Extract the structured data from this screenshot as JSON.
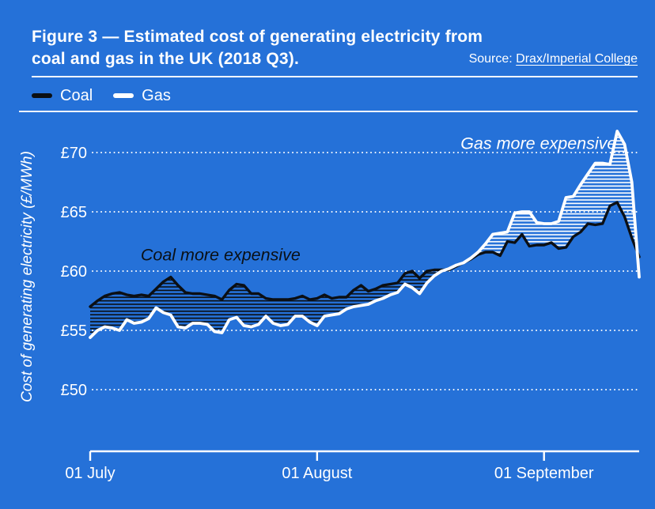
{
  "title": {
    "line1": "Figure 3 — Estimated cost of generating electricity from",
    "line2": "coal and gas in the UK (2018 Q3)."
  },
  "source": {
    "prefix": "Source: ",
    "link": "Drax/Imperial College"
  },
  "legend": {
    "items": [
      {
        "label": "Coal",
        "color": "#0b0f14"
      },
      {
        "label": "Gas",
        "color": "#ffffff"
      }
    ]
  },
  "colors": {
    "background": "#2571d8",
    "coal": "#0b0f14",
    "gas": "#ffffff",
    "grid": "#ffffff",
    "annotation_dark": "#0a1016",
    "annotation_light": "#ffffff"
  },
  "chart_data": {
    "type": "line",
    "x_unit": "day (1 July 2018 = 0)",
    "x_ticks": [
      {
        "label": "01 July",
        "day": 0
      },
      {
        "label": "01 August",
        "day": 31
      },
      {
        "label": "01 September",
        "day": 62
      }
    ],
    "ylabel": "Cost of generating electricity (£/MWh)",
    "y_ticks": [
      {
        "label": "£50",
        "value": 50
      },
      {
        "label": "£55",
        "value": 55
      },
      {
        "label": "£60",
        "value": 60
      },
      {
        "label": "£65",
        "value": 65
      },
      {
        "label": "£70",
        "value": 70
      }
    ],
    "ylim": [
      44.8,
      72.5
    ],
    "grid": "dotted-horizontal",
    "legend_position": "top-left",
    "series": [
      {
        "name": "Coal",
        "color": "#0b0f14",
        "values": [
          57.0,
          57.5,
          57.9,
          58.1,
          58.2,
          58.0,
          57.9,
          58.0,
          57.9,
          58.5,
          59.1,
          59.5,
          58.8,
          58.2,
          58.1,
          58.1,
          58.0,
          57.9,
          57.6,
          58.4,
          58.9,
          58.8,
          58.1,
          58.1,
          57.7,
          57.6,
          57.6,
          57.6,
          57.7,
          57.9,
          57.6,
          57.7,
          58.0,
          57.7,
          57.8,
          57.8,
          58.4,
          58.8,
          58.3,
          58.5,
          58.8,
          58.9,
          59.0,
          59.8,
          60.0,
          59.4,
          60.0,
          60.1,
          60.1,
          60.1,
          60.4,
          60.7,
          61.0,
          61.4,
          61.6,
          61.6,
          61.3,
          62.5,
          62.4,
          63.1,
          62.1,
          62.2,
          62.2,
          62.4,
          61.9,
          62.0,
          62.9,
          63.3,
          64.0,
          63.9,
          64.0,
          65.5,
          65.8,
          64.6,
          62.8,
          61.2
        ]
      },
      {
        "name": "Gas",
        "color": "#ffffff",
        "values": [
          54.4,
          55.0,
          55.3,
          55.2,
          55.0,
          55.9,
          55.6,
          55.7,
          56.0,
          56.9,
          56.5,
          56.3,
          55.3,
          55.2,
          55.6,
          55.6,
          55.5,
          54.9,
          54.8,
          55.9,
          56.1,
          55.4,
          55.3,
          55.5,
          56.2,
          55.6,
          55.4,
          55.5,
          56.2,
          56.2,
          55.7,
          55.4,
          56.2,
          56.3,
          56.4,
          56.8,
          57.0,
          57.1,
          57.2,
          57.5,
          57.7,
          58.0,
          58.2,
          58.9,
          58.6,
          58.1,
          59.0,
          59.6,
          60.0,
          60.2,
          60.5,
          60.7,
          61.1,
          61.6,
          62.3,
          63.1,
          63.2,
          63.3,
          64.9,
          65.0,
          65.0,
          64.1,
          64.0,
          64.0,
          64.2,
          66.2,
          66.3,
          67.3,
          68.2,
          69.1,
          69.1,
          69.0,
          71.8,
          70.7,
          67.5,
          59.5
        ]
      }
    ],
    "fills": [
      {
        "condition": "Coal > Gas",
        "style": "dark-horizontal-hatch",
        "meaning": "Coal more expensive"
      },
      {
        "condition": "Gas > Coal",
        "style": "white-horizontal-hatch",
        "meaning": "Gas more expensive"
      }
    ],
    "annotations": [
      {
        "text": "Coal more expensive",
        "day": 6.9,
        "value": 60.9,
        "color": "#0a1016"
      },
      {
        "text": "Gas more expensive",
        "day": 50.6,
        "value": 70.3,
        "color": "#ffffff"
      }
    ]
  }
}
